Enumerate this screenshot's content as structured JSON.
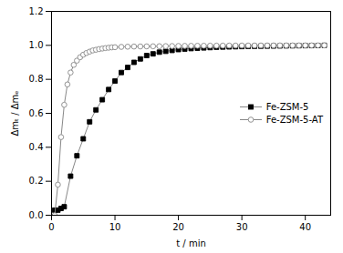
{
  "chart_data": {
    "type": "line",
    "xlabel": "t / min",
    "ylabel": "Δmₜ / Δmₑ",
    "xlim": [
      0,
      44
    ],
    "ylim": [
      0.0,
      1.2
    ],
    "xticks": [
      0,
      10,
      20,
      30,
      40
    ],
    "yticks": [
      {
        "value": 0.0,
        "label": "0.0"
      },
      0.2,
      0.4,
      0.6,
      0.8,
      {
        "value": 1.0,
        "label": "1.0"
      },
      1.2
    ],
    "grid": false,
    "legend": "right",
    "series": [
      {
        "name": "Fe-ZSM-5",
        "color": "#888888",
        "marker": "square",
        "line_style": "solid",
        "x": [
          0.5,
          1.0,
          1.5,
          2.0,
          3.0,
          4.0,
          5.0,
          6.0,
          7.0,
          8.0,
          9.0,
          10.0,
          11.0,
          12.0,
          13.0,
          14.0,
          15.0,
          16.0,
          17.0,
          18.0,
          19.0,
          20.0,
          21.0,
          22.0,
          23.0,
          24.0,
          25.0,
          26.0,
          27.0,
          28.0,
          29.0,
          30.0,
          31.0,
          32.0,
          33.0,
          34.0,
          35.0,
          36.0,
          37.0,
          38.0,
          39.0,
          40.0,
          41.0,
          42.0,
          43.0
        ],
        "values": [
          0.03,
          0.03,
          0.04,
          0.05,
          0.23,
          0.35,
          0.45,
          0.55,
          0.62,
          0.68,
          0.74,
          0.79,
          0.84,
          0.87,
          0.9,
          0.92,
          0.94,
          0.95,
          0.96,
          0.965,
          0.97,
          0.975,
          0.978,
          0.981,
          0.983,
          0.985,
          0.987,
          0.989,
          0.99,
          0.991,
          0.992,
          0.993,
          0.994,
          0.9945,
          0.995,
          0.9955,
          0.996,
          0.9965,
          0.997,
          0.9975,
          0.998,
          0.9983,
          0.9986,
          0.999,
          1.0
        ]
      },
      {
        "name": "Fe-ZSM-5-AT",
        "color": "#888888",
        "marker": "circle",
        "line_style": "solid",
        "x": [
          0.5,
          1.0,
          1.5,
          2.0,
          2.5,
          3.0,
          3.5,
          4.0,
          4.5,
          5.0,
          5.5,
          6.0,
          6.5,
          7.0,
          7.5,
          8.0,
          8.5,
          9.0,
          9.5,
          10.0,
          11.0,
          12.0,
          13.0,
          14.0,
          15.0,
          16.0,
          17.0,
          18.0,
          19.0,
          20.0,
          21.0,
          22.0,
          23.0,
          24.0,
          25.0,
          26.0,
          27.0,
          28.0,
          29.0,
          30.0,
          31.0,
          32.0,
          33.0,
          34.0,
          35.0,
          36.0,
          37.0,
          38.0,
          39.0,
          40.0,
          41.0,
          42.0,
          43.0
        ],
        "values": [
          0.0,
          0.18,
          0.46,
          0.65,
          0.77,
          0.84,
          0.885,
          0.91,
          0.93,
          0.945,
          0.955,
          0.963,
          0.97,
          0.974,
          0.978,
          0.981,
          0.984,
          0.986,
          0.988,
          0.989,
          0.991,
          0.992,
          0.993,
          0.9935,
          0.994,
          0.9945,
          0.995,
          0.9955,
          0.996,
          0.9965,
          0.997,
          0.9973,
          0.9976,
          0.9979,
          0.9982,
          0.9984,
          0.9986,
          0.9988,
          0.9989,
          0.999,
          0.9991,
          0.9992,
          0.9993,
          0.9994,
          0.9995,
          0.9996,
          0.9997,
          0.9997,
          0.9998,
          0.9998,
          0.9999,
          0.9999,
          1.0
        ]
      }
    ]
  }
}
